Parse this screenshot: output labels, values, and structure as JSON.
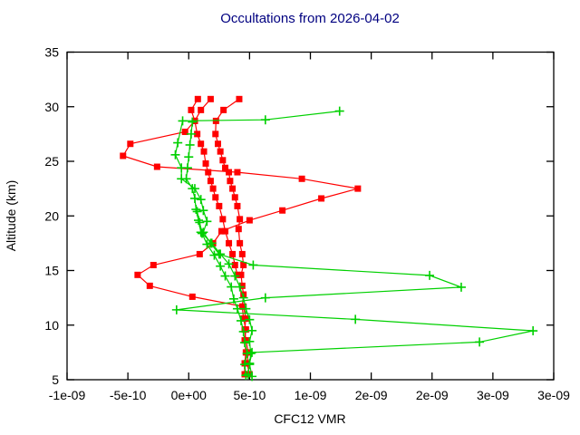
{
  "window": {
    "background": "#ffffff"
  },
  "colors": {
    "title": "#000080",
    "axis": "#000000",
    "red_series": "#ff0000",
    "green_series": "#00d000"
  },
  "chart_data": {
    "type": "line",
    "title": "Occultations from 2026-04-02",
    "xlabel": "CFC12 VMR",
    "ylabel": "Altitude (km)",
    "xlim": [
      -1e-09,
      3e-09
    ],
    "ylim": [
      5,
      35
    ],
    "grid": false,
    "legend_position": "none",
    "x_ticks": {
      "values": [
        -1e-09,
        -5e-10,
        0,
        5e-10,
        1e-09,
        1.5e-09,
        2e-09,
        2.5e-09,
        3e-09
      ],
      "labels": [
        "-1e-09",
        "-5e-10",
        "0e+00",
        "5e-10",
        "1e-09",
        "2e-09",
        "2e-09",
        "3e-09",
        "3e-09"
      ]
    },
    "y_ticks": {
      "values": [
        5,
        10,
        15,
        20,
        25,
        30,
        35
      ],
      "labels": [
        "5",
        "10",
        "15",
        "20",
        "25",
        "30",
        "35"
      ]
    },
    "series": [
      {
        "name": "red-occultation-1",
        "color": "#ff0000",
        "marker": "square",
        "points_format": [
          "vmr",
          "altitude_km"
        ],
        "points": [
          [
            4.6e-10,
            5.5
          ],
          [
            4.6e-10,
            6.5
          ],
          [
            4.7e-10,
            7.5
          ],
          [
            4.6e-10,
            8.6
          ],
          [
            4.7e-10,
            9.6
          ],
          [
            4.5e-10,
            10.6
          ],
          [
            4.4e-10,
            11.7
          ],
          [
            4.5e-10,
            12.8
          ],
          [
            4.4e-10,
            13.6
          ],
          [
            4.3e-10,
            14.6
          ],
          [
            4.5e-10,
            15.5
          ],
          [
            4.4e-10,
            16.5
          ],
          [
            4.2e-10,
            17.5
          ],
          [
            4.1e-10,
            18.8
          ],
          [
            4.2e-10,
            19.7
          ],
          [
            4e-10,
            20.9
          ],
          [
            3.8e-10,
            21.7
          ],
          [
            3.6e-10,
            22.5
          ],
          [
            3.4e-10,
            23.2
          ],
          [
            3.3e-10,
            24.0
          ],
          [
            3e-10,
            24.4
          ],
          [
            2.8e-10,
            25.1
          ],
          [
            2.6e-10,
            25.9
          ],
          [
            2.4e-10,
            26.6
          ],
          [
            2.2e-10,
            27.5
          ],
          [
            2.24e-10,
            28.7
          ],
          [
            2.86e-10,
            29.7
          ],
          [
            4.15e-10,
            30.7
          ]
        ]
      },
      {
        "name": "red-occultation-2",
        "color": "#ff0000",
        "marker": "square",
        "points_format": [
          "vmr",
          "altitude_km"
        ],
        "points": [
          [
            5e-10,
            5.5
          ],
          [
            4.8e-10,
            6.5
          ],
          [
            4.9e-10,
            7.5
          ],
          [
            4.7e-10,
            8.6
          ],
          [
            4.6e-10,
            9.6
          ],
          [
            4.7e-10,
            10.6
          ],
          [
            4.5e-10,
            11.7
          ],
          [
            3e-11,
            12.6
          ],
          [
            -3.2e-10,
            13.6
          ],
          [
            -4.2e-10,
            14.6
          ],
          [
            -2.9e-10,
            15.5
          ],
          [
            9e-11,
            16.5
          ],
          [
            2e-10,
            17.5
          ],
          [
            2.7e-10,
            18.6
          ],
          [
            5e-10,
            19.6
          ],
          [
            7.7e-10,
            20.5
          ],
          [
            1.09e-09,
            21.6
          ],
          [
            1.39e-09,
            22.5
          ],
          [
            9.3e-10,
            23.4
          ],
          [
            4e-10,
            24.0
          ],
          [
            -2.6e-10,
            24.5
          ],
          [
            -5.4e-10,
            25.5
          ],
          [
            -4.8e-10,
            26.6
          ],
          [
            -3e-11,
            27.7
          ],
          [
            5e-11,
            28.7
          ],
          [
            2e-11,
            29.7
          ],
          [
            7.5e-11,
            30.7
          ]
        ]
      },
      {
        "name": "red-occultation-3",
        "color": "#ff0000",
        "marker": "square",
        "points_format": [
          "vmr",
          "altitude_km"
        ],
        "points": [
          [
            4e-10,
            14.6
          ],
          [
            3.8e-10,
            15.5
          ],
          [
            3.6e-10,
            16.5
          ],
          [
            3.3e-10,
            17.5
          ],
          [
            3e-10,
            18.6
          ],
          [
            2.8e-10,
            19.7
          ],
          [
            2.5e-10,
            20.9
          ],
          [
            2.2e-10,
            21.7
          ],
          [
            2e-10,
            22.5
          ],
          [
            1.8e-10,
            23.2
          ],
          [
            1.6e-10,
            24.0
          ],
          [
            1.4e-10,
            24.8
          ],
          [
            1.25e-10,
            25.9
          ],
          [
            1e-10,
            26.6
          ],
          [
            7e-11,
            27.5
          ],
          [
            5e-11,
            28.7
          ],
          [
            1e-10,
            29.7
          ],
          [
            1.8e-10,
            30.7
          ]
        ]
      },
      {
        "name": "green-occultation-1",
        "color": "#00d000",
        "marker": "plus",
        "points_format": [
          "vmr",
          "altitude_km"
        ],
        "points": [
          [
            4.9e-10,
            5.5
          ],
          [
            5e-10,
            6.5
          ],
          [
            5.2e-10,
            7.5
          ],
          [
            2.39e-09,
            8.45
          ],
          [
            2.83e-09,
            9.48
          ],
          [
            1.37e-09,
            10.53
          ],
          [
            -1e-10,
            11.4
          ],
          [
            6.3e-10,
            12.5
          ],
          [
            2.24e-09,
            13.47
          ],
          [
            1.98e-09,
            14.55
          ],
          [
            5.3e-10,
            15.5
          ],
          [
            2.5e-10,
            16.5
          ],
          [
            1.8e-10,
            17.5
          ],
          [
            1.2e-10,
            18.5
          ],
          [
            1.5e-10,
            19.5
          ],
          [
            1.2e-10,
            20.5
          ],
          [
            1e-10,
            21.5
          ],
          [
            5e-11,
            22.5
          ],
          [
            -6e-11,
            23.4
          ],
          [
            -6e-11,
            24.4
          ],
          [
            -1.1e-10,
            25.6
          ],
          [
            -9e-11,
            26.7
          ],
          [
            -5e-11,
            28.7
          ],
          [
            6.3e-10,
            28.8
          ],
          [
            1.24e-09,
            29.6
          ]
        ]
      },
      {
        "name": "green-occultation-2",
        "color": "#00d000",
        "marker": "plus",
        "points_format": [
          "vmr",
          "altitude_km"
        ],
        "points": [
          [
            5.2e-10,
            5.3
          ],
          [
            5e-10,
            6.4
          ],
          [
            5.1e-10,
            7.4
          ],
          [
            5e-10,
            8.5
          ],
          [
            5.2e-10,
            9.5
          ],
          [
            5e-10,
            10.5
          ],
          [
            4.7e-10,
            11.5
          ],
          [
            4.5e-10,
            12.5
          ],
          [
            4.2e-10,
            13.5
          ],
          [
            3.8e-10,
            14.5
          ],
          [
            3.3e-10,
            15.6
          ],
          [
            2.6e-10,
            16.5
          ],
          [
            1.9e-10,
            17.5
          ],
          [
            1e-10,
            18.5
          ],
          [
            8e-11,
            19.6
          ],
          [
            6e-11,
            20.6
          ],
          [
            5e-11,
            21.6
          ],
          [
            3e-11,
            22.5
          ],
          [
            -2e-11,
            23.4
          ],
          [
            -1e-11,
            24.4
          ],
          [
            0,
            25.4
          ],
          [
            1e-11,
            26.5
          ],
          [
            2e-11,
            27.5
          ],
          [
            3e-11,
            28.6
          ]
        ]
      },
      {
        "name": "green-occultation-3",
        "color": "#00d000",
        "marker": "plus",
        "points_format": [
          "vmr",
          "altitude_km"
        ],
        "points": [
          [
            4.7e-10,
            5.4
          ],
          [
            4.6e-10,
            6.4
          ],
          [
            4.8e-10,
            7.4
          ],
          [
            4.6e-10,
            8.4
          ],
          [
            4.5e-10,
            9.4
          ],
          [
            4.3e-10,
            10.4
          ],
          [
            4e-10,
            11.5
          ],
          [
            3.7e-10,
            12.4
          ],
          [
            3.5e-10,
            13.5
          ],
          [
            3e-10,
            14.5
          ],
          [
            2.6e-10,
            15.4
          ],
          [
            2.1e-10,
            16.4
          ],
          [
            1.5e-10,
            17.4
          ],
          [
            1.1e-10,
            18.4
          ],
          [
            9e-11,
            19.4
          ],
          [
            7e-11,
            20.4
          ]
        ]
      }
    ]
  }
}
